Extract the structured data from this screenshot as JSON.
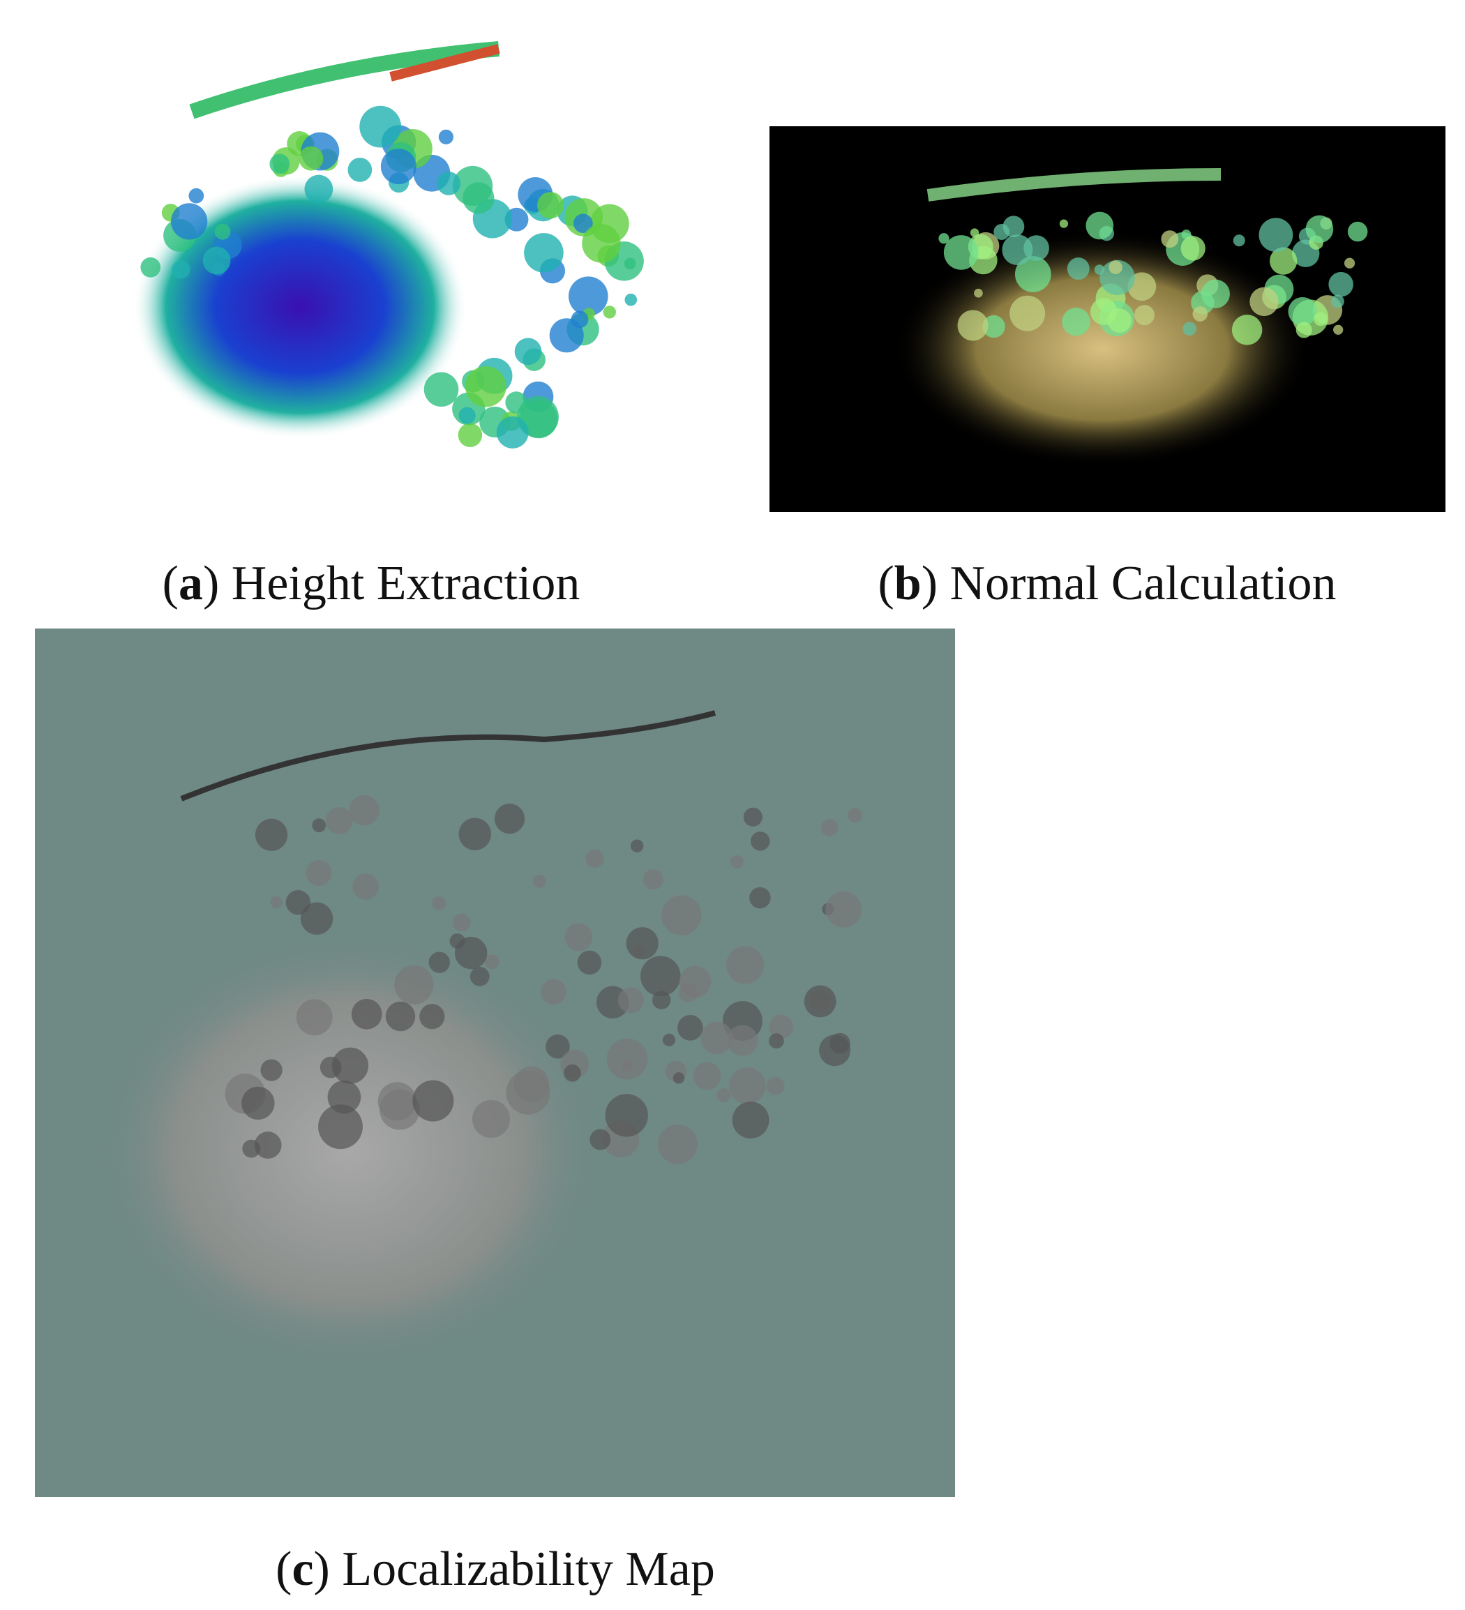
{
  "figure": {
    "brackets": [
      "(",
      ")"
    ],
    "panels": [
      {
        "label": "a",
        "caption": "Height Extraction"
      },
      {
        "label": "b",
        "caption": "Normal Calculation"
      },
      {
        "label": "c",
        "caption": "Localizability Map"
      }
    ]
  }
}
